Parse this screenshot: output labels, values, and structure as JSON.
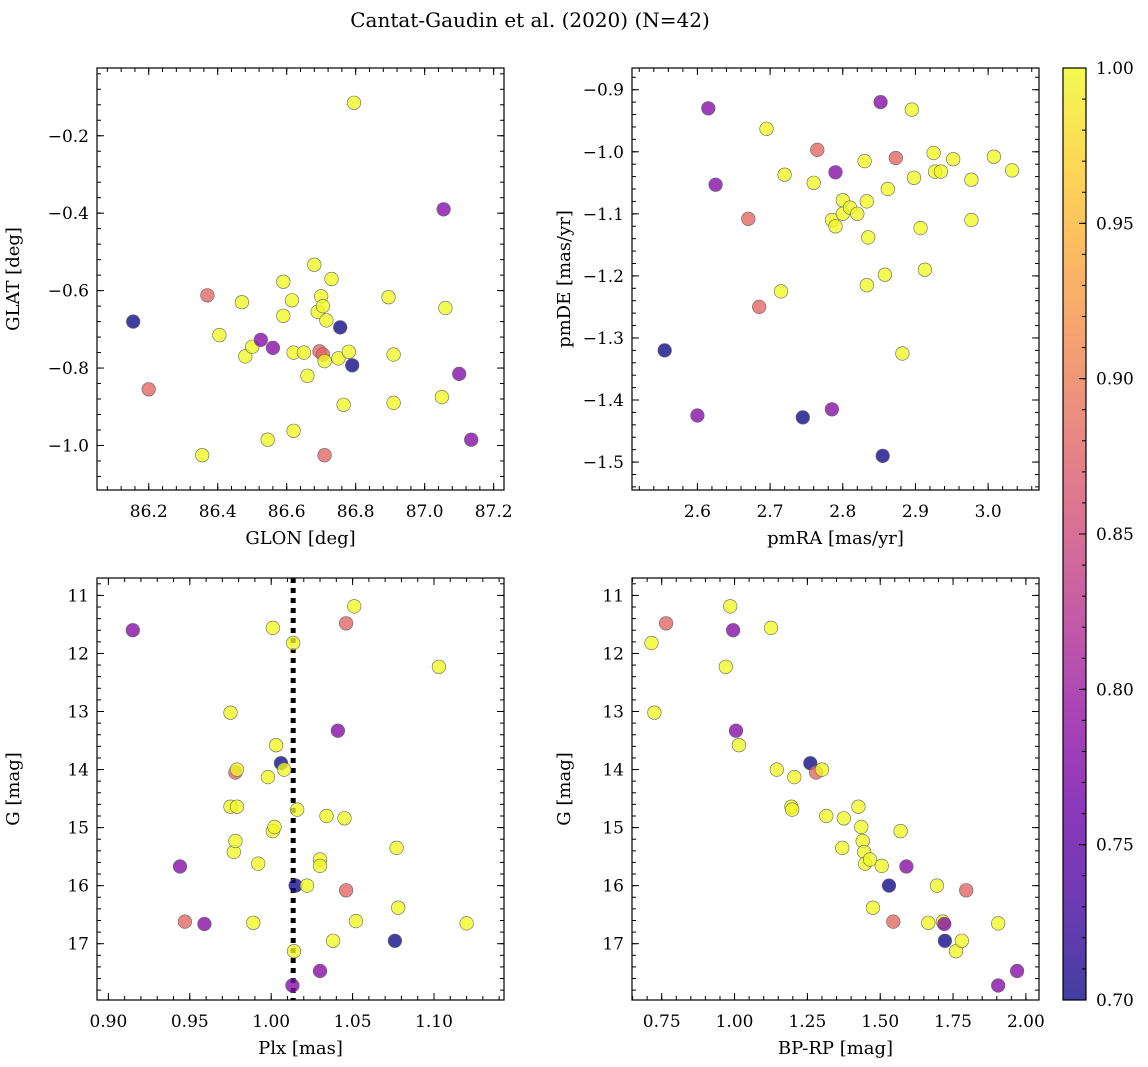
{
  "figure_title": "Cantat-Gaudin et al. (2020) (N=42)",
  "colorbar": {
    "min": 0.7,
    "max": 1.0,
    "ticks": [
      "0.70",
      "0.75",
      "0.80",
      "0.85",
      "0.90",
      "0.95",
      "1.00"
    ],
    "tick_values": [
      0.7,
      0.75,
      0.8,
      0.85,
      0.9,
      0.95,
      1.0
    ],
    "cmap": "plasma"
  },
  "chart_data": [
    {
      "type": "scatter",
      "id": "glon-glat",
      "xlabel": "GLON [deg]",
      "ylabel": "GLAT [deg]",
      "xlim": [
        86.05,
        87.23
      ],
      "ylim": [
        -1.115,
        -0.025
      ],
      "y_inverted": false,
      "xticks": [
        86.2,
        86.4,
        86.6,
        86.8,
        87.0,
        87.2
      ],
      "xtick_labels": [
        "86.2",
        "86.4",
        "86.6",
        "86.8",
        "87.0",
        "87.2"
      ],
      "yticks": [
        -1.0,
        -0.8,
        -0.6,
        -0.4,
        -0.2
      ],
      "ytick_labels": [
        "−1.0",
        "−0.8",
        "−0.6",
        "−0.4",
        "−0.2"
      ],
      "xminor": 0.04,
      "yminor": 0.04,
      "points": [
        {
          "x": 86.155,
          "y": -0.68,
          "c": 0.7
        },
        {
          "x": 86.2,
          "y": -0.855,
          "c": 0.88
        },
        {
          "x": 86.37,
          "y": -0.612,
          "c": 0.88
        },
        {
          "x": 86.355,
          "y": -1.025,
          "c": 1.0
        },
        {
          "x": 86.405,
          "y": -0.715,
          "c": 1.0
        },
        {
          "x": 86.47,
          "y": -0.63,
          "c": 1.0
        },
        {
          "x": 86.48,
          "y": -0.77,
          "c": 1.0
        },
        {
          "x": 86.5,
          "y": -0.745,
          "c": 1.0
        },
        {
          "x": 86.525,
          "y": -0.727,
          "c": 0.78
        },
        {
          "x": 86.545,
          "y": -0.985,
          "c": 1.0
        },
        {
          "x": 86.56,
          "y": -0.748,
          "c": 0.78
        },
        {
          "x": 86.59,
          "y": -0.577,
          "c": 1.0
        },
        {
          "x": 86.59,
          "y": -0.665,
          "c": 1.0
        },
        {
          "x": 86.615,
          "y": -0.625,
          "c": 1.0
        },
        {
          "x": 86.62,
          "y": -0.76,
          "c": 1.0
        },
        {
          "x": 86.62,
          "y": -0.962,
          "c": 1.0
        },
        {
          "x": 86.65,
          "y": -0.76,
          "c": 1.0
        },
        {
          "x": 86.66,
          "y": -0.82,
          "c": 1.0
        },
        {
          "x": 86.68,
          "y": -0.533,
          "c": 1.0
        },
        {
          "x": 86.69,
          "y": -0.655,
          "c": 1.0
        },
        {
          "x": 86.695,
          "y": -0.757,
          "c": 0.88
        },
        {
          "x": 86.705,
          "y": -0.765,
          "c": 0.88
        },
        {
          "x": 86.7,
          "y": -0.615,
          "c": 1.0
        },
        {
          "x": 86.705,
          "y": -0.64,
          "c": 1.0
        },
        {
          "x": 86.71,
          "y": -0.782,
          "c": 1.0
        },
        {
          "x": 86.71,
          "y": -1.025,
          "c": 0.88
        },
        {
          "x": 86.715,
          "y": -0.677,
          "c": 1.0
        },
        {
          "x": 86.73,
          "y": -0.57,
          "c": 1.0
        },
        {
          "x": 86.75,
          "y": -0.775,
          "c": 1.0
        },
        {
          "x": 86.755,
          "y": -0.695,
          "c": 0.7
        },
        {
          "x": 86.765,
          "y": -0.895,
          "c": 1.0
        },
        {
          "x": 86.78,
          "y": -0.758,
          "c": 1.0
        },
        {
          "x": 86.79,
          "y": -0.793,
          "c": 0.7
        },
        {
          "x": 86.795,
          "y": -0.115,
          "c": 1.0
        },
        {
          "x": 86.895,
          "y": -0.617,
          "c": 1.0
        },
        {
          "x": 86.91,
          "y": -0.765,
          "c": 1.0
        },
        {
          "x": 86.91,
          "y": -0.89,
          "c": 1.0
        },
        {
          "x": 87.05,
          "y": -0.875,
          "c": 1.0
        },
        {
          "x": 87.055,
          "y": -0.39,
          "c": 0.78
        },
        {
          "x": 87.06,
          "y": -0.645,
          "c": 1.0
        },
        {
          "x": 87.1,
          "y": -0.815,
          "c": 0.78
        },
        {
          "x": 87.135,
          "y": -0.985,
          "c": 0.78
        }
      ]
    },
    {
      "type": "scatter",
      "id": "pmra-pmde",
      "xlabel": "pmRA [mas/yr]",
      "ylabel": "pmDE [mas/yr]",
      "xlim": [
        2.51,
        3.07
      ],
      "ylim": [
        -1.545,
        -0.865
      ],
      "y_inverted": false,
      "xticks": [
        2.6,
        2.7,
        2.8,
        2.9,
        3.0
      ],
      "xtick_labels": [
        "2.6",
        "2.7",
        "2.8",
        "2.9",
        "3.0"
      ],
      "yticks": [
        -1.5,
        -1.4,
        -1.3,
        -1.2,
        -1.1,
        -1.0,
        -0.9
      ],
      "ytick_labels": [
        "−1.5",
        "−1.4",
        "−1.3",
        "−1.2",
        "−1.1",
        "−1.0",
        "−0.9"
      ],
      "xminor": 0.02,
      "yminor": 0.02,
      "points": [
        {
          "x": 2.555,
          "y": -1.32,
          "c": 0.7
        },
        {
          "x": 2.6,
          "y": -1.425,
          "c": 0.78
        },
        {
          "x": 2.615,
          "y": -0.93,
          "c": 0.78
        },
        {
          "x": 2.625,
          "y": -1.053,
          "c": 0.78
        },
        {
          "x": 2.67,
          "y": -1.108,
          "c": 0.88
        },
        {
          "x": 2.685,
          "y": -1.25,
          "c": 0.88
        },
        {
          "x": 2.695,
          "y": -0.963,
          "c": 1.0
        },
        {
          "x": 2.715,
          "y": -1.225,
          "c": 1.0
        },
        {
          "x": 2.72,
          "y": -1.037,
          "c": 1.0
        },
        {
          "x": 2.745,
          "y": -1.428,
          "c": 0.7
        },
        {
          "x": 2.76,
          "y": -1.05,
          "c": 1.0
        },
        {
          "x": 2.765,
          "y": -0.997,
          "c": 0.88
        },
        {
          "x": 2.785,
          "y": -1.415,
          "c": 0.78
        },
        {
          "x": 2.785,
          "y": -1.11,
          "c": 1.0
        },
        {
          "x": 2.79,
          "y": -1.12,
          "c": 1.0
        },
        {
          "x": 2.79,
          "y": -1.033,
          "c": 0.78
        },
        {
          "x": 2.8,
          "y": -1.078,
          "c": 1.0
        },
        {
          "x": 2.8,
          "y": -1.1,
          "c": 1.0
        },
        {
          "x": 2.81,
          "y": -1.09,
          "c": 1.0
        },
        {
          "x": 2.82,
          "y": -1.1,
          "c": 1.0
        },
        {
          "x": 2.83,
          "y": -1.015,
          "c": 1.0
        },
        {
          "x": 2.833,
          "y": -1.08,
          "c": 1.0
        },
        {
          "x": 2.833,
          "y": -1.215,
          "c": 1.0
        },
        {
          "x": 2.835,
          "y": -1.138,
          "c": 1.0
        },
        {
          "x": 2.852,
          "y": -0.92,
          "c": 0.78
        },
        {
          "x": 2.855,
          "y": -1.49,
          "c": 0.7
        },
        {
          "x": 2.858,
          "y": -1.198,
          "c": 1.0
        },
        {
          "x": 2.862,
          "y": -1.06,
          "c": 1.0
        },
        {
          "x": 2.873,
          "y": -1.01,
          "c": 0.88
        },
        {
          "x": 2.882,
          "y": -1.325,
          "c": 1.0
        },
        {
          "x": 2.895,
          "y": -0.932,
          "c": 1.0
        },
        {
          "x": 2.898,
          "y": -1.042,
          "c": 1.0
        },
        {
          "x": 2.907,
          "y": -1.123,
          "c": 1.0
        },
        {
          "x": 2.913,
          "y": -1.19,
          "c": 1.0
        },
        {
          "x": 2.925,
          "y": -1.002,
          "c": 1.0
        },
        {
          "x": 2.927,
          "y": -1.032,
          "c": 1.0
        },
        {
          "x": 2.935,
          "y": -1.032,
          "c": 1.0
        },
        {
          "x": 2.952,
          "y": -1.012,
          "c": 1.0
        },
        {
          "x": 2.977,
          "y": -1.045,
          "c": 1.0
        },
        {
          "x": 2.977,
          "y": -1.11,
          "c": 1.0
        },
        {
          "x": 3.008,
          "y": -1.008,
          "c": 1.0
        },
        {
          "x": 3.033,
          "y": -1.03,
          "c": 1.0
        }
      ]
    },
    {
      "type": "scatter",
      "id": "plx-g",
      "xlabel": "Plx [mas]",
      "ylabel": "G [mag]",
      "xlim": [
        0.893,
        1.143
      ],
      "ylim": [
        10.7,
        17.97
      ],
      "y_inverted": true,
      "xticks": [
        0.9,
        0.95,
        1.0,
        1.05,
        1.1
      ],
      "xtick_labels": [
        "0.90",
        "0.95",
        "1.00",
        "1.05",
        "1.10"
      ],
      "yticks": [
        11,
        12,
        13,
        14,
        15,
        16,
        17
      ],
      "ytick_labels": [
        "11",
        "12",
        "13",
        "14",
        "15",
        "16",
        "17"
      ],
      "xminor": 0.01,
      "yminor": 0.2,
      "vline": {
        "x": 1.0135,
        "style": "dotted"
      },
      "points": [
        {
          "x": 0.915,
          "y": 11.6,
          "c": 0.78
        },
        {
          "x": 0.944,
          "y": 15.67,
          "c": 0.78
        },
        {
          "x": 0.947,
          "y": 16.62,
          "c": 0.88
        },
        {
          "x": 0.959,
          "y": 16.66,
          "c": 0.78
        },
        {
          "x": 0.975,
          "y": 13.02,
          "c": 1.0
        },
        {
          "x": 0.975,
          "y": 14.64,
          "c": 1.0
        },
        {
          "x": 0.977,
          "y": 15.42,
          "c": 1.0
        },
        {
          "x": 0.978,
          "y": 14.05,
          "c": 0.88
        },
        {
          "x": 0.978,
          "y": 15.23,
          "c": 1.0
        },
        {
          "x": 0.979,
          "y": 14.0,
          "c": 1.0
        },
        {
          "x": 0.979,
          "y": 14.64,
          "c": 1.0
        },
        {
          "x": 0.989,
          "y": 16.64,
          "c": 1.0
        },
        {
          "x": 0.992,
          "y": 15.62,
          "c": 1.0
        },
        {
          "x": 0.998,
          "y": 14.13,
          "c": 1.0
        },
        {
          "x": 1.001,
          "y": 11.56,
          "c": 1.0
        },
        {
          "x": 1.001,
          "y": 15.06,
          "c": 1.0
        },
        {
          "x": 1.002,
          "y": 14.99,
          "c": 1.0
        },
        {
          "x": 1.003,
          "y": 13.58,
          "c": 1.0
        },
        {
          "x": 1.006,
          "y": 13.89,
          "c": 0.7
        },
        {
          "x": 1.008,
          "y": 14.0,
          "c": 1.0
        },
        {
          "x": 1.0135,
          "y": 11.82,
          "c": 1.0
        },
        {
          "x": 1.014,
          "y": 17.13,
          "c": 1.0
        },
        {
          "x": 1.013,
          "y": 17.72,
          "c": 0.78
        },
        {
          "x": 1.015,
          "y": 16.0,
          "c": 0.7
        },
        {
          "x": 1.016,
          "y": 14.69,
          "c": 1.0
        },
        {
          "x": 1.022,
          "y": 16.0,
          "c": 1.0
        },
        {
          "x": 1.03,
          "y": 15.55,
          "c": 1.0
        },
        {
          "x": 1.03,
          "y": 15.66,
          "c": 1.0
        },
        {
          "x": 1.03,
          "y": 17.47,
          "c": 0.78
        },
        {
          "x": 1.034,
          "y": 14.8,
          "c": 1.0
        },
        {
          "x": 1.038,
          "y": 16.95,
          "c": 1.0
        },
        {
          "x": 1.041,
          "y": 13.33,
          "c": 0.78
        },
        {
          "x": 1.045,
          "y": 14.84,
          "c": 1.0
        },
        {
          "x": 1.046,
          "y": 11.48,
          "c": 0.88
        },
        {
          "x": 1.046,
          "y": 16.08,
          "c": 0.88
        },
        {
          "x": 1.051,
          "y": 11.19,
          "c": 1.0
        },
        {
          "x": 1.052,
          "y": 16.61,
          "c": 1.0
        },
        {
          "x": 1.076,
          "y": 16.95,
          "c": 0.7
        },
        {
          "x": 1.077,
          "y": 15.35,
          "c": 1.0
        },
        {
          "x": 1.078,
          "y": 16.38,
          "c": 1.0
        },
        {
          "x": 1.103,
          "y": 12.23,
          "c": 1.0
        },
        {
          "x": 1.12,
          "y": 16.65,
          "c": 1.0
        }
      ]
    },
    {
      "type": "scatter",
      "id": "bprp-g",
      "xlabel": "BP-RP [mag]",
      "ylabel": "G [mag]",
      "xlim": [
        0.648,
        2.045
      ],
      "ylim": [
        10.7,
        17.97
      ],
      "y_inverted": true,
      "xticks": [
        0.75,
        1.0,
        1.25,
        1.5,
        1.75,
        2.0
      ],
      "xtick_labels": [
        "0.75",
        "1.00",
        "1.25",
        "1.50",
        "1.75",
        "2.00"
      ],
      "yticks": [
        11,
        12,
        13,
        14,
        15,
        16,
        17
      ],
      "ytick_labels": [
        "11",
        "12",
        "13",
        "14",
        "15",
        "16",
        "17"
      ],
      "xminor": 0.05,
      "yminor": 0.2,
      "points": [
        {
          "x": 0.715,
          "y": 11.82,
          "c": 1.0
        },
        {
          "x": 0.725,
          "y": 13.02,
          "c": 1.0
        },
        {
          "x": 0.765,
          "y": 11.48,
          "c": 0.88
        },
        {
          "x": 0.97,
          "y": 12.23,
          "c": 1.0
        },
        {
          "x": 0.985,
          "y": 11.19,
          "c": 1.0
        },
        {
          "x": 0.995,
          "y": 11.6,
          "c": 0.78
        },
        {
          "x": 1.005,
          "y": 13.33,
          "c": 0.78
        },
        {
          "x": 1.015,
          "y": 13.58,
          "c": 1.0
        },
        {
          "x": 1.125,
          "y": 11.56,
          "c": 1.0
        },
        {
          "x": 1.145,
          "y": 14.0,
          "c": 1.0
        },
        {
          "x": 1.195,
          "y": 14.64,
          "c": 1.0
        },
        {
          "x": 1.198,
          "y": 14.69,
          "c": 1.0
        },
        {
          "x": 1.205,
          "y": 14.13,
          "c": 1.0
        },
        {
          "x": 1.26,
          "y": 13.89,
          "c": 0.7
        },
        {
          "x": 1.28,
          "y": 14.05,
          "c": 0.88
        },
        {
          "x": 1.3,
          "y": 14.0,
          "c": 1.0
        },
        {
          "x": 1.315,
          "y": 14.8,
          "c": 1.0
        },
        {
          "x": 1.37,
          "y": 15.35,
          "c": 1.0
        },
        {
          "x": 1.375,
          "y": 14.84,
          "c": 1.0
        },
        {
          "x": 1.425,
          "y": 14.64,
          "c": 1.0
        },
        {
          "x": 1.435,
          "y": 14.99,
          "c": 1.0
        },
        {
          "x": 1.44,
          "y": 15.23,
          "c": 1.0
        },
        {
          "x": 1.445,
          "y": 15.42,
          "c": 1.0
        },
        {
          "x": 1.448,
          "y": 15.62,
          "c": 1.0
        },
        {
          "x": 1.465,
          "y": 15.55,
          "c": 1.0
        },
        {
          "x": 1.475,
          "y": 16.38,
          "c": 1.0
        },
        {
          "x": 1.505,
          "y": 15.66,
          "c": 1.0
        },
        {
          "x": 1.53,
          "y": 16.0,
          "c": 0.7
        },
        {
          "x": 1.545,
          "y": 16.62,
          "c": 0.88
        },
        {
          "x": 1.57,
          "y": 15.06,
          "c": 1.0
        },
        {
          "x": 1.59,
          "y": 15.67,
          "c": 0.78
        },
        {
          "x": 1.665,
          "y": 16.64,
          "c": 1.0
        },
        {
          "x": 1.695,
          "y": 16.0,
          "c": 1.0
        },
        {
          "x": 1.715,
          "y": 16.62,
          "c": 1.0
        },
        {
          "x": 1.72,
          "y": 16.66,
          "c": 0.78
        },
        {
          "x": 1.722,
          "y": 16.95,
          "c": 0.7
        },
        {
          "x": 1.76,
          "y": 17.13,
          "c": 1.0
        },
        {
          "x": 1.78,
          "y": 16.95,
          "c": 1.0
        },
        {
          "x": 1.795,
          "y": 16.08,
          "c": 0.88
        },
        {
          "x": 1.905,
          "y": 16.65,
          "c": 1.0
        },
        {
          "x": 1.905,
          "y": 17.72,
          "c": 0.78
        },
        {
          "x": 1.97,
          "y": 17.47,
          "c": 0.78
        }
      ]
    }
  ]
}
